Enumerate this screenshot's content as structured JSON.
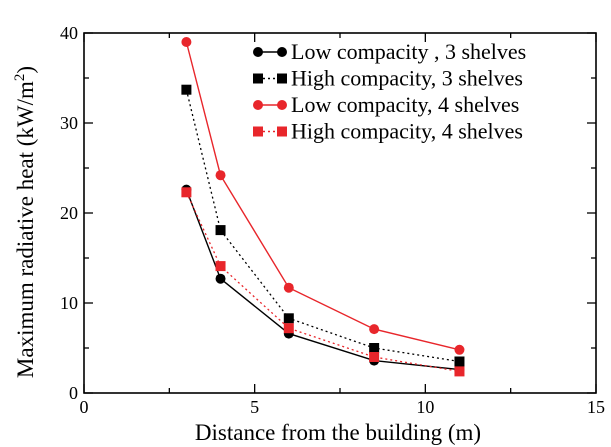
{
  "chart_data": {
    "type": "line",
    "xlabel": "Distance from the building (m)",
    "ylabel_main": "Maximum radiative heat (kW/m",
    "ylabel_exp": "2",
    "ylabel_close": ")",
    "xlim": [
      0,
      15
    ],
    "ylim": [
      0,
      40
    ],
    "xticks": [
      0,
      5,
      10,
      15
    ],
    "yticks": [
      0,
      10,
      20,
      30,
      40
    ],
    "xtick_labels": [
      "0",
      "5",
      "10",
      "15"
    ],
    "ytick_labels": [
      "0",
      "10",
      "20",
      "30",
      "40"
    ],
    "legend_position": "top-right",
    "grid": false,
    "series": [
      {
        "name": "Low compacity , 3 shelves",
        "color": "#000000",
        "marker": "circle",
        "line": "solid",
        "x": [
          3,
          4,
          6,
          8.5,
          11
        ],
        "y": [
          22.6,
          12.7,
          6.6,
          3.6,
          2.6
        ]
      },
      {
        "name": "High compacity, 3 shelves",
        "color": "#000000",
        "marker": "square",
        "line": "dotted",
        "x": [
          3,
          4,
          6,
          8.5,
          11
        ],
        "y": [
          33.7,
          18.1,
          8.3,
          5.0,
          3.5
        ]
      },
      {
        "name": "Low compacity, 4 shelves",
        "color": "#e8262b",
        "marker": "circle",
        "line": "solid",
        "x": [
          3,
          4,
          6,
          8.5,
          11
        ],
        "y": [
          39.0,
          24.2,
          11.7,
          7.1,
          4.8
        ]
      },
      {
        "name": "High compacity, 4 shelves",
        "color": "#e8262b",
        "marker": "square",
        "line": "dotted",
        "x": [
          3,
          4,
          6,
          8.5,
          11
        ],
        "y": [
          22.3,
          14.1,
          7.2,
          4.0,
          2.4
        ]
      }
    ]
  }
}
